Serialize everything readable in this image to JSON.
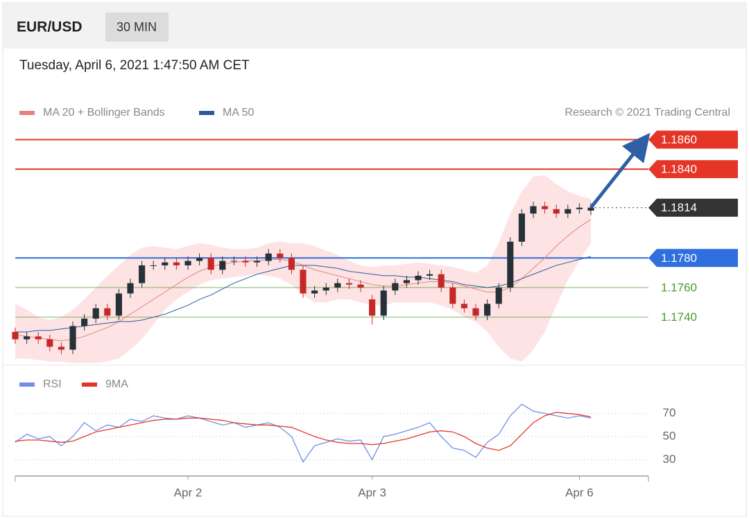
{
  "header": {
    "symbol": "EUR/USD",
    "interval": "30 MIN"
  },
  "timestamp": "Tuesday, April 6, 2021 1:47:50 AM CET",
  "chart_data": [
    {
      "type": "candlestick",
      "credit": "Research © 2021 Trading Central",
      "xlim": [
        0,
        55
      ],
      "ylim": [
        1.1708,
        1.1871
      ],
      "up_color": "#263238",
      "down_color": "#c62828",
      "open": [
        1.173,
        1.1725,
        1.1727,
        1.1725,
        1.172,
        1.1718,
        1.1734,
        1.1739,
        1.1746,
        1.1741,
        1.1756,
        1.1763,
        1.1775,
        1.1775,
        1.1777,
        1.1775,
        1.1778,
        1.178,
        1.1772,
        1.1778,
        1.1778,
        1.1777,
        1.1778,
        1.1783,
        1.178,
        1.1772,
        1.1756,
        1.1758,
        1.176,
        1.1763,
        1.1762,
        1.1752,
        1.1741,
        1.1758,
        1.1763,
        1.1765,
        1.1768,
        1.1769,
        1.176,
        1.1749,
        1.1746,
        1.1741,
        1.1749,
        1.176,
        1.1791,
        1.181,
        1.1815,
        1.1813,
        1.181,
        1.1813,
        1.1812
      ],
      "high": [
        1.1733,
        1.173,
        1.173,
        1.1728,
        1.1723,
        1.1737,
        1.1742,
        1.1749,
        1.1749,
        1.1759,
        1.1766,
        1.1778,
        1.1778,
        1.178,
        1.178,
        1.1781,
        1.1783,
        1.1783,
        1.1781,
        1.1781,
        1.1781,
        1.1781,
        1.1786,
        1.1786,
        1.1783,
        1.1775,
        1.1761,
        1.1763,
        1.1766,
        1.1766,
        1.1765,
        1.1755,
        1.1761,
        1.1766,
        1.1768,
        1.1771,
        1.1772,
        1.1772,
        1.1763,
        1.1752,
        1.1749,
        1.1752,
        1.1763,
        1.1794,
        1.1813,
        1.1818,
        1.1818,
        1.1816,
        1.1816,
        1.1817,
        1.1817
      ],
      "low": [
        1.1722,
        1.1722,
        1.1722,
        1.1717,
        1.1715,
        1.1715,
        1.1731,
        1.1736,
        1.1738,
        1.1738,
        1.1753,
        1.176,
        1.1772,
        1.1772,
        1.1772,
        1.1772,
        1.1775,
        1.1769,
        1.1769,
        1.1775,
        1.1774,
        1.1774,
        1.1775,
        1.1777,
        1.1769,
        1.1753,
        1.1753,
        1.1755,
        1.1757,
        1.1759,
        1.1757,
        1.1735,
        1.1738,
        1.1755,
        1.176,
        1.1762,
        1.1765,
        1.1757,
        1.1746,
        1.1743,
        1.1738,
        1.1738,
        1.1746,
        1.1757,
        1.1788,
        1.1807,
        1.181,
        1.1807,
        1.1807,
        1.181,
        1.1809
      ],
      "close": [
        1.1725,
        1.1727,
        1.1725,
        1.172,
        1.1718,
        1.1734,
        1.1739,
        1.1746,
        1.1741,
        1.1756,
        1.1763,
        1.1775,
        1.1775,
        1.1777,
        1.1775,
        1.1778,
        1.178,
        1.1772,
        1.1778,
        1.1778,
        1.1777,
        1.1778,
        1.1783,
        1.178,
        1.1772,
        1.1756,
        1.1758,
        1.176,
        1.1763,
        1.1762,
        1.176,
        1.1741,
        1.1758,
        1.1763,
        1.1765,
        1.1768,
        1.1769,
        1.176,
        1.1749,
        1.1746,
        1.1741,
        1.1749,
        1.176,
        1.1791,
        1.181,
        1.1815,
        1.1813,
        1.181,
        1.1813,
        1.1814,
        1.1814
      ],
      "series": [
        {
          "name": "MA 20 + Bollinger Bands",
          "color": "#e88080",
          "band_color": "#fde3e3",
          "values": [
            1.1728,
            1.1727,
            1.1726,
            1.1725,
            1.1724,
            1.1725,
            1.1727,
            1.173,
            1.1733,
            1.1737,
            1.1742,
            1.1747,
            1.1752,
            1.1757,
            1.1762,
            1.1767,
            1.1771,
            1.1774,
            1.1776,
            1.1777,
            1.1778,
            1.1778,
            1.1779,
            1.1779,
            1.1778,
            1.1775,
            1.1772,
            1.177,
            1.1768,
            1.1766,
            1.1764,
            1.1762,
            1.1761,
            1.1761,
            1.1762,
            1.1763,
            1.1764,
            1.1764,
            1.1763,
            1.1761,
            1.1759,
            1.1757,
            1.1757,
            1.176,
            1.1766,
            1.1773,
            1.178,
            1.1788,
            1.1795,
            1.1801,
            1.1806
          ],
          "upper": [
            1.1749,
            1.1745,
            1.174,
            1.1738,
            1.174,
            1.1745,
            1.1752,
            1.176,
            1.1768,
            1.1775,
            1.1782,
            1.1787,
            1.1788,
            1.1787,
            1.1786,
            1.1788,
            1.179,
            1.1789,
            1.1787,
            1.1786,
            1.1786,
            1.1787,
            1.179,
            1.1791,
            1.179,
            1.179,
            1.1788,
            1.1785,
            1.1782,
            1.1778,
            1.1775,
            1.1774,
            1.1775,
            1.1775,
            1.1776,
            1.1777,
            1.1776,
            1.1775,
            1.1774,
            1.1772,
            1.177,
            1.1775,
            1.179,
            1.181,
            1.1825,
            1.1835,
            1.1836,
            1.183,
            1.1825,
            1.1822,
            1.182
          ],
          "lower": [
            1.1712,
            1.1712,
            1.1711,
            1.171,
            1.171,
            1.1709,
            1.1709,
            1.1709,
            1.171,
            1.1712,
            1.1718,
            1.1725,
            1.1735,
            1.1745,
            1.1752,
            1.1757,
            1.1762,
            1.1765,
            1.1766,
            1.1767,
            1.1768,
            1.1769,
            1.1768,
            1.1766,
            1.1762,
            1.1755,
            1.175,
            1.175,
            1.1752,
            1.1752,
            1.175,
            1.1748,
            1.1748,
            1.175,
            1.175,
            1.175,
            1.175,
            1.1748,
            1.1745,
            1.174,
            1.1737,
            1.173,
            1.172,
            1.1712,
            1.171,
            1.1718,
            1.173,
            1.1748,
            1.1765,
            1.1778,
            1.179
          ]
        },
        {
          "name": "MA 50",
          "color": "#2c5aa0",
          "values": [
            1.173,
            1.173,
            1.1731,
            1.1731,
            1.1732,
            1.1733,
            1.1734,
            1.1735,
            1.1736,
            1.1737,
            1.1737,
            1.1738,
            1.174,
            1.1742,
            1.1745,
            1.1748,
            1.1752,
            1.1755,
            1.1759,
            1.1763,
            1.1766,
            1.1769,
            1.1771,
            1.1773,
            1.1775,
            1.1775,
            1.1775,
            1.1774,
            1.1773,
            1.1771,
            1.177,
            1.1769,
            1.1768,
            1.1768,
            1.1767,
            1.1767,
            1.1766,
            1.1765,
            1.1764,
            1.1762,
            1.1761,
            1.176,
            1.1761,
            1.1763,
            1.1766,
            1.1769,
            1.1772,
            1.1775,
            1.1777,
            1.1779,
            1.1781
          ]
        }
      ],
      "levels": [
        {
          "value": 1.186,
          "label": "1.1860",
          "color": "#e53527",
          "style": "box",
          "line": "solid"
        },
        {
          "value": 1.184,
          "label": "1.1840",
          "color": "#e53527",
          "style": "box",
          "line": "solid"
        },
        {
          "value": 1.1814,
          "label": "1.1814",
          "color": "#333333",
          "style": "box",
          "line": "dotted"
        },
        {
          "value": 1.178,
          "label": "1.1780",
          "color": "#2f6fde",
          "style": "box",
          "line": "solid"
        },
        {
          "value": 1.176,
          "label": "1.1760",
          "color": "#4a9a2a",
          "style": "text",
          "line": "solid"
        },
        {
          "value": 1.174,
          "label": "1.1740",
          "color": "#4a9a2a",
          "style": "text",
          "line": "solid"
        }
      ],
      "forecast": {
        "from": 1.1814,
        "to": 1.186,
        "color": "#2f5fa5"
      }
    },
    {
      "type": "line",
      "xlim": [
        0,
        55
      ],
      "ylim": [
        17,
        83
      ],
      "yticks": [
        30,
        50,
        70
      ],
      "xticks": [
        {
          "value": 15,
          "label": "Apr 2"
        },
        {
          "value": 31,
          "label": "Apr 3"
        },
        {
          "value": 49,
          "label": "Apr 6"
        }
      ],
      "series": [
        {
          "name": "RSI",
          "color": "#6f8ee8",
          "values": [
            45,
            52,
            48,
            50,
            42,
            50,
            62,
            55,
            60,
            58,
            65,
            63,
            68,
            66,
            65,
            68,
            66,
            63,
            60,
            62,
            58,
            60,
            62,
            58,
            50,
            28,
            42,
            45,
            48,
            46,
            47,
            30,
            50,
            52,
            55,
            58,
            62,
            50,
            40,
            38,
            32,
            45,
            52,
            68,
            78,
            72,
            70,
            68,
            66,
            68,
            66
          ]
        },
        {
          "name": "9MA",
          "color": "#e53527",
          "values": [
            46,
            47,
            47,
            46,
            45,
            46,
            50,
            54,
            56,
            58,
            60,
            62,
            64,
            65,
            65,
            66,
            66,
            65,
            64,
            62,
            61,
            60,
            60,
            59,
            58,
            54,
            50,
            47,
            45,
            44,
            44,
            43,
            44,
            46,
            48,
            51,
            54,
            55,
            54,
            50,
            44,
            40,
            38,
            42,
            52,
            62,
            68,
            71,
            70,
            69,
            67
          ]
        }
      ]
    }
  ]
}
